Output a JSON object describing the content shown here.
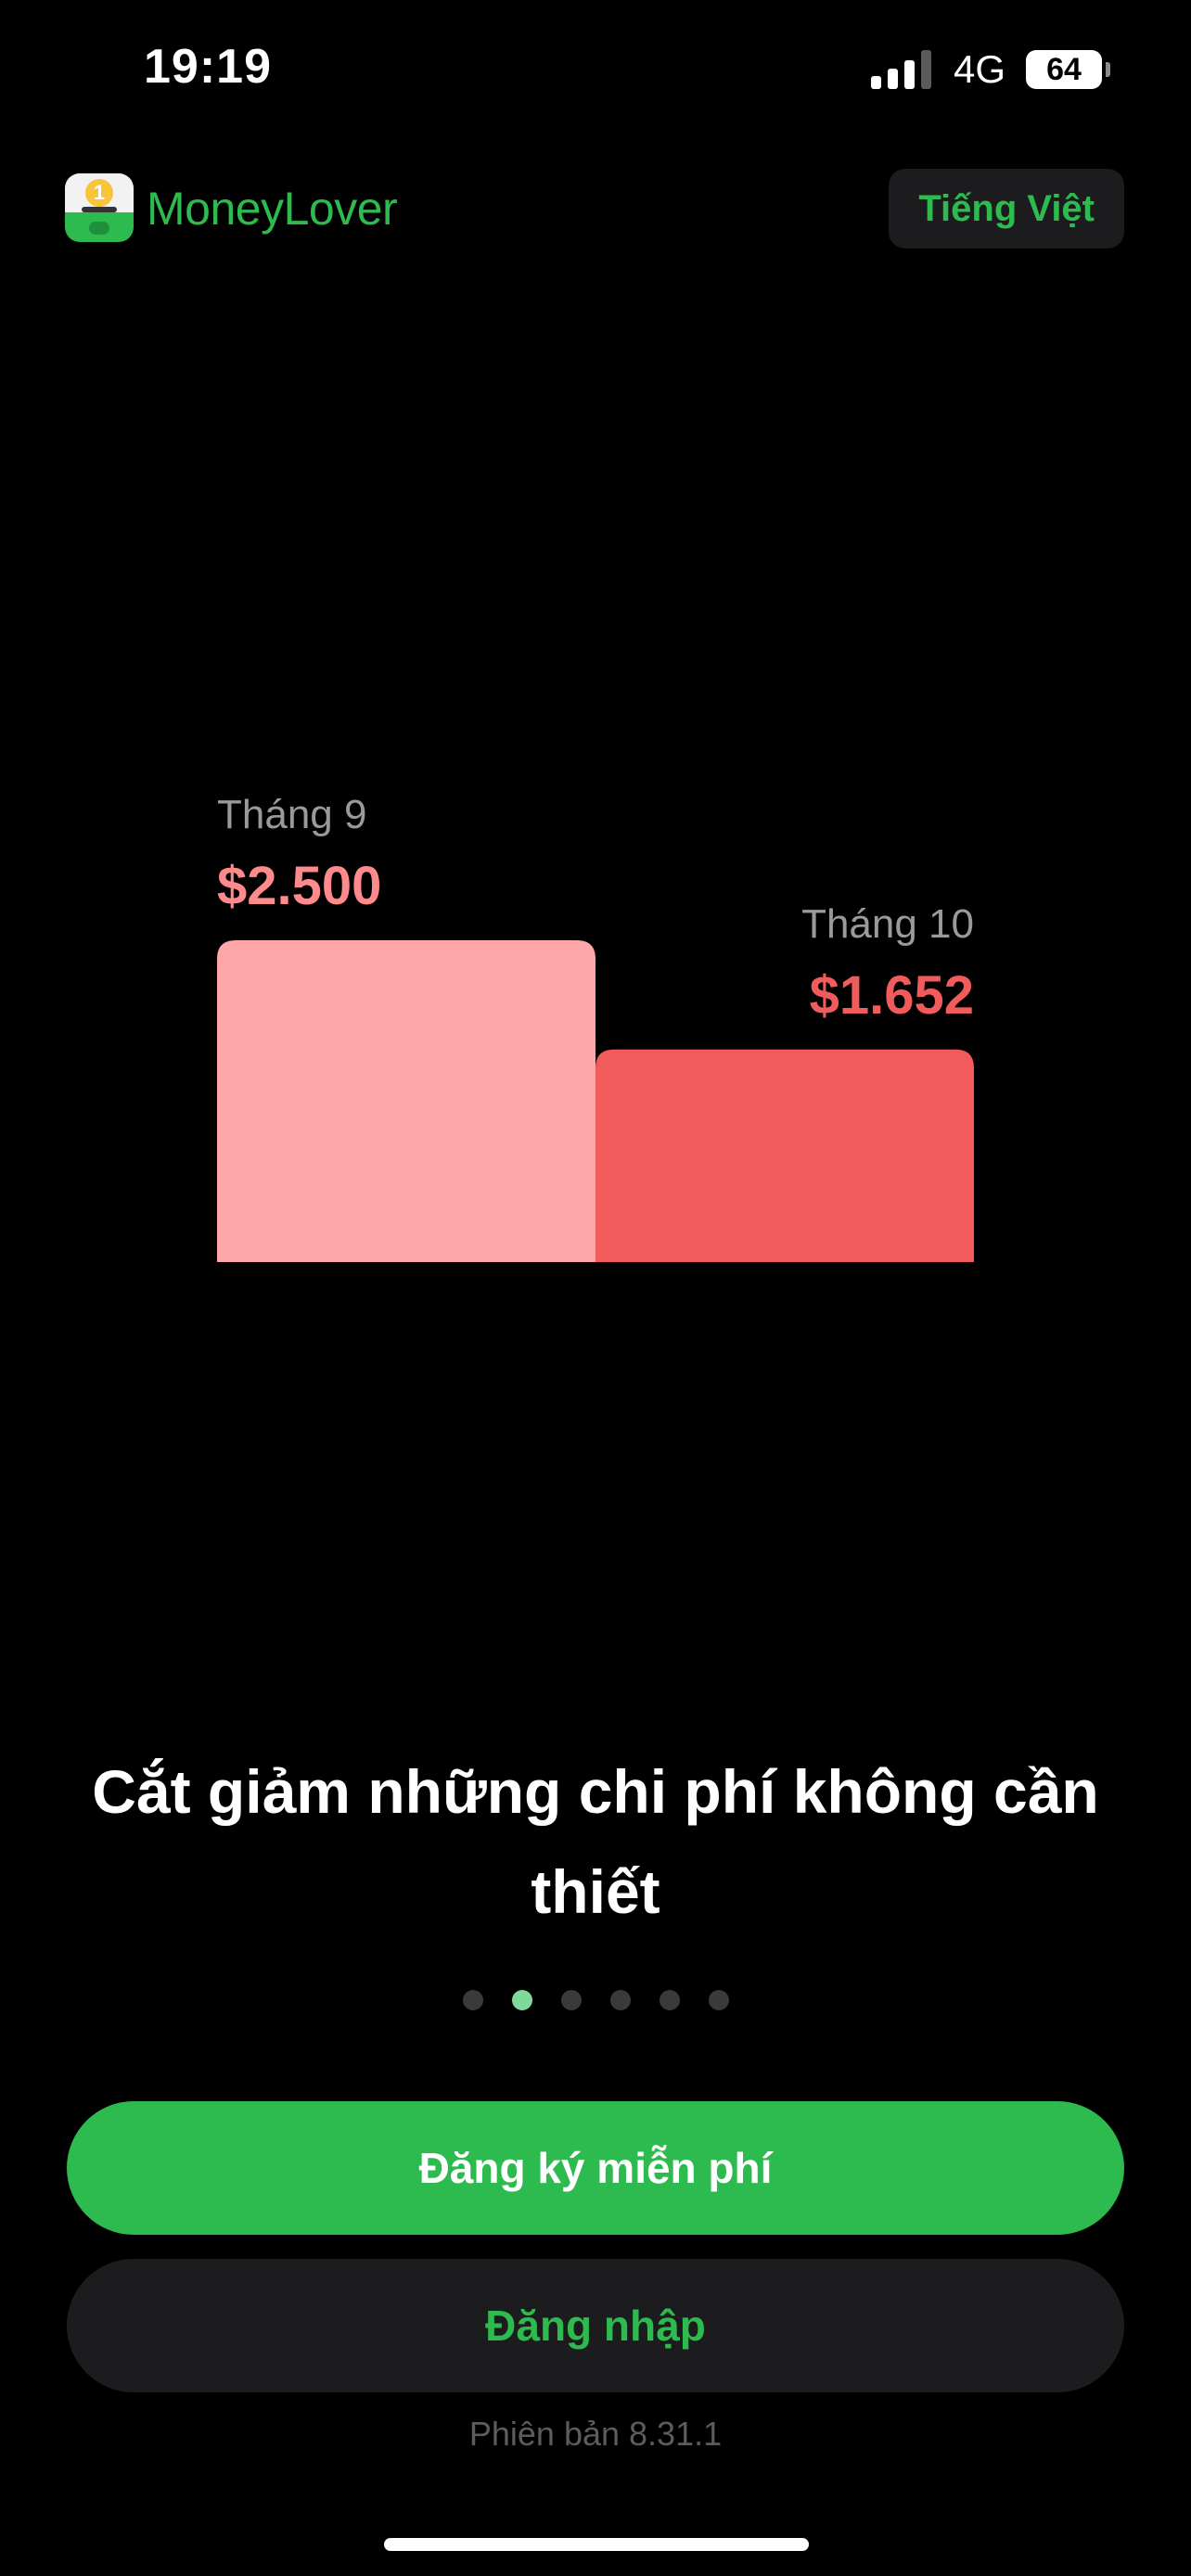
{
  "status_bar": {
    "time": "19:19",
    "network": "4G",
    "battery": "64",
    "signal_bars_active": 3,
    "signal_bars_total": 4
  },
  "header": {
    "brand": "MoneyLover",
    "language_button": "Tiếng Việt",
    "logo_badge": "1",
    "accent_color": "#2dba4e"
  },
  "chart_data": {
    "type": "bar",
    "categories": [
      "Tháng 9",
      "Tháng 10"
    ],
    "values": [
      2500,
      1652
    ],
    "value_labels": [
      "$2.500",
      "$1.652"
    ],
    "colors": [
      "#ffa7a8",
      "#f25b5c"
    ],
    "value_label_colors": [
      "#ff8a8c",
      "#f25b5c"
    ],
    "grid": false,
    "axes": false
  },
  "onboarding": {
    "headline": "Cắt giảm những chi phí không cần thiết",
    "page_count": 6,
    "active_page": 1
  },
  "actions": {
    "signup_label": "Đăng ký miễn phí",
    "login_label": "Đăng nhập"
  },
  "footer": {
    "version": "Phiên bản 8.31.1"
  }
}
